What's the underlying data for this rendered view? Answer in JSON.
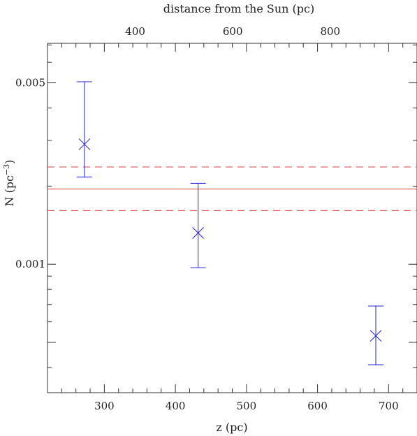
{
  "chart_data": {
    "type": "scatter",
    "title": "",
    "xlabel": "z (pc)",
    "ylabel_main": "N (pc",
    "ylabel_sup": "−3",
    "ylabel_close": ")",
    "top_xlabel": "distance from the Sun (pc)",
    "xlim": [
      220,
      740
    ],
    "ylim": [
      0.00032,
      0.0071
    ],
    "yscale": "log",
    "top_xlim": [
      220,
      978
    ],
    "x_ticks": [
      300,
      400,
      500,
      600,
      700
    ],
    "x_tick_labels": [
      "300",
      "400",
      "500",
      "600",
      "700"
    ],
    "top_ticks": [
      400,
      600,
      800
    ],
    "top_tick_labels": [
      "400",
      "600",
      "800"
    ],
    "y_ticks": [
      0.001,
      0.005
    ],
    "y_tick_labels": [
      "0.001",
      "0.005"
    ],
    "series": [
      {
        "x": [
          272,
          432,
          682
        ],
        "y": [
          0.0029,
          0.00132,
          0.00053
        ],
        "yerr_low": [
          0.00217,
          0.00097,
          0.00041
        ],
        "yerr_high": [
          0.00505,
          0.00205,
          0.00069
        ]
      }
    ],
    "hlines": [
      {
        "y": 0.00195,
        "style": "solid"
      },
      {
        "y": 0.00237,
        "style": "dashed"
      },
      {
        "y": 0.00161,
        "style": "dashed"
      }
    ],
    "grid": false,
    "colors": {
      "points": "#2323e6",
      "lines": "#e04040",
      "axes": "#333333"
    }
  }
}
